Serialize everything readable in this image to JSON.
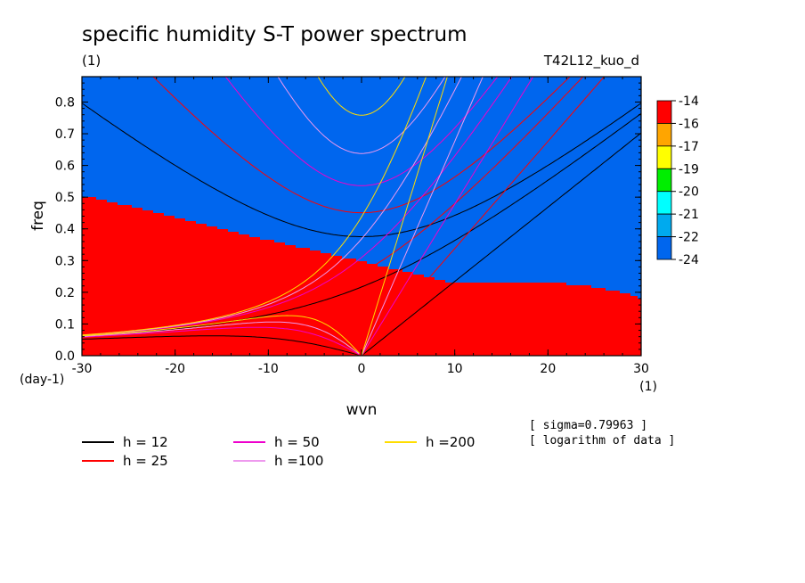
{
  "title": "specific humidity S-T power spectrum",
  "subtitle_left": "(1)",
  "run_name": "T42L12_kuo_d",
  "notes": [
    "[ sigma=0.79963 ]",
    "[ logarithm of data ]"
  ],
  "chart_data": {
    "type": "heatmap",
    "title": "specific humidity S-T power spectrum",
    "xlabel": "wvn",
    "ylabel": "freq",
    "x_unit_label": "(1)",
    "y_unit_label": "(day-1)",
    "xlim": [
      -30,
      30
    ],
    "ylim": [
      0,
      0.88
    ],
    "x_ticks": [
      -30,
      -20,
      -10,
      0,
      10,
      20,
      30
    ],
    "x_tick_labels": [
      "-30",
      "-20",
      "-10",
      "0",
      "10",
      "20",
      "30"
    ],
    "y_ticks": [
      0.0,
      0.1,
      0.2,
      0.3,
      0.4,
      0.5,
      0.6,
      0.7,
      0.8
    ],
    "y_tick_labels": [
      "0.0",
      "0.1",
      "0.2",
      "0.3",
      "0.4",
      "0.5",
      "0.6",
      "0.7",
      "0.8"
    ],
    "colorbar": {
      "labels": [
        "-14",
        "-16",
        "-17",
        "-19",
        "-20",
        "-21",
        "-22",
        "-24"
      ],
      "colors": [
        "#ff0000",
        "#ffa500",
        "#ffff00",
        "#00ee00",
        "#00ffff",
        "#00aaee",
        "#0066ee"
      ]
    },
    "field_levels": [
      -16,
      -17,
      -19,
      -20,
      -21,
      -22
    ],
    "field_colors": [
      "#0066ee",
      "#00aaee",
      "#00ffff",
      "#00ee00",
      "#ffff00",
      "#ffa500",
      "#ff0000"
    ],
    "dispersion_curves": [
      {
        "label": "h = 12",
        "h": 12,
        "color": "#000000"
      },
      {
        "label": "h = 25",
        "h": 25,
        "color": "#ff0000"
      },
      {
        "label": "h = 50",
        "h": 50,
        "color": "#ee00cc"
      },
      {
        "label": "h =100",
        "h": 100,
        "color": "#ee99ee"
      },
      {
        "label": "h =200",
        "h": 200,
        "color": "#ffdd00"
      }
    ]
  }
}
